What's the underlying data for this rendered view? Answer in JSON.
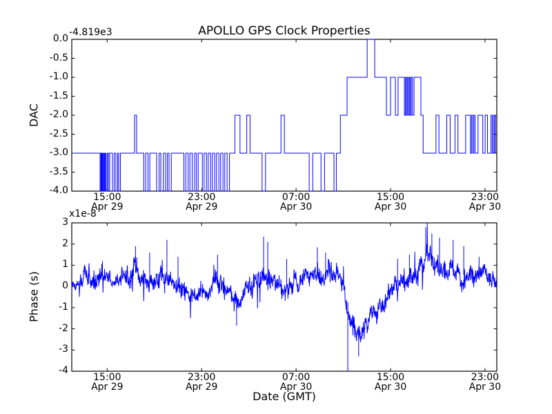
{
  "title": "APOLLO GPS Clock Properties",
  "xlabel": "Date (GMT)",
  "line_color": "#0000ff",
  "axis_color": "#000000",
  "axes": {
    "top": {
      "ylabel": "DAC",
      "offset_text": "-4.819e3",
      "ytick_labels": [
        "0.0",
        "-0.5",
        "-1.0",
        "-1.5",
        "-2.0",
        "-2.5",
        "-3.0",
        "-3.5",
        "-4.0"
      ],
      "ytick_values": [
        0,
        -0.5,
        -1,
        -1.5,
        -2,
        -2.5,
        -3,
        -3.5,
        -4
      ],
      "ylim": [
        -4.0,
        0.0
      ]
    },
    "bottom": {
      "ylabel": "Phase (s)",
      "offset_text": "x1e-8",
      "ytick_labels": [
        "3",
        "2",
        "1",
        "0",
        "-1",
        "-2",
        "-3",
        "-4"
      ],
      "ytick_values": [
        3,
        2,
        1,
        0,
        -1,
        -2,
        -3,
        -4
      ],
      "ylim": [
        -4,
        3
      ]
    }
  },
  "xticks": {
    "values_hours": [
      3,
      11,
      19,
      27,
      35
    ],
    "labels": [
      [
        "15:00",
        "Apr 29"
      ],
      [
        "23:00",
        "Apr 29"
      ],
      [
        "07:00",
        "Apr 30"
      ],
      [
        "15:00",
        "Apr 30"
      ],
      [
        "23:00",
        "Apr 30"
      ]
    ]
  },
  "chart_data": [
    {
      "type": "line",
      "subplot": "top",
      "title": "APOLLO GPS Clock Properties",
      "ylabel": "DAC",
      "y_offset": "-4.819e3",
      "ylim": [
        -4.0,
        0.0
      ],
      "xlim_hours": [
        0,
        36
      ],
      "x_origin": "Apr 29 12:00 GMT",
      "interpolation": "step-post",
      "steps": [
        [
          0,
          -3
        ],
        [
          2.4,
          -4
        ],
        [
          2.47,
          -3
        ],
        [
          2.52,
          -4
        ],
        [
          2.58,
          -3
        ],
        [
          2.64,
          -4
        ],
        [
          2.71,
          -3
        ],
        [
          2.77,
          -4
        ],
        [
          2.84,
          -3
        ],
        [
          2.91,
          -4
        ],
        [
          3.01,
          -3
        ],
        [
          3.11,
          -4
        ],
        [
          3.21,
          -3
        ],
        [
          3.45,
          -4
        ],
        [
          3.6,
          -3
        ],
        [
          3.74,
          -4
        ],
        [
          3.89,
          -3
        ],
        [
          3.98,
          -4
        ],
        [
          4.12,
          -3
        ],
        [
          5.32,
          -2
        ],
        [
          5.49,
          -3
        ],
        [
          6.1,
          -4
        ],
        [
          6.26,
          -3
        ],
        [
          6.46,
          -4
        ],
        [
          6.61,
          -3
        ],
        [
          7.19,
          -4
        ],
        [
          7.4,
          -3
        ],
        [
          7.54,
          -4
        ],
        [
          7.76,
          -3
        ],
        [
          7.95,
          -4
        ],
        [
          8.1,
          -3
        ],
        [
          8.24,
          -4
        ],
        [
          8.43,
          -3
        ],
        [
          9.5,
          -4
        ],
        [
          9.66,
          -3
        ],
        [
          9.86,
          -4
        ],
        [
          10.01,
          -3
        ],
        [
          10.21,
          -4
        ],
        [
          10.41,
          -3
        ],
        [
          10.56,
          -4
        ],
        [
          10.71,
          -3
        ],
        [
          11.06,
          -4
        ],
        [
          11.21,
          -3
        ],
        [
          11.41,
          -4
        ],
        [
          11.56,
          -3
        ],
        [
          11.76,
          -4
        ],
        [
          11.91,
          -3
        ],
        [
          12.11,
          -4
        ],
        [
          12.26,
          -3
        ],
        [
          12.46,
          -4
        ],
        [
          12.61,
          -3
        ],
        [
          12.81,
          -4
        ],
        [
          12.96,
          -3
        ],
        [
          13.16,
          -4
        ],
        [
          13.36,
          -3
        ],
        [
          13.82,
          -2
        ],
        [
          14.25,
          -3
        ],
        [
          14.82,
          -2
        ],
        [
          15.1,
          -3
        ],
        [
          16.12,
          -4
        ],
        [
          16.41,
          -3
        ],
        [
          17.72,
          -2
        ],
        [
          18.01,
          -3
        ],
        [
          20.11,
          -4
        ],
        [
          20.41,
          -3
        ],
        [
          21.11,
          -4
        ],
        [
          21.41,
          -3
        ],
        [
          22.21,
          -4
        ],
        [
          22.41,
          -3
        ],
        [
          22.75,
          -2
        ],
        [
          23.32,
          -1
        ],
        [
          25.02,
          0
        ],
        [
          25.66,
          -1
        ],
        [
          26.65,
          -2
        ],
        [
          27.0,
          -1
        ],
        [
          27.41,
          -2
        ],
        [
          27.64,
          -1
        ],
        [
          28.17,
          -2
        ],
        [
          28.26,
          -1
        ],
        [
          28.34,
          -2
        ],
        [
          28.42,
          -1
        ],
        [
          28.51,
          -2
        ],
        [
          28.59,
          -1
        ],
        [
          28.67,
          -2
        ],
        [
          28.76,
          -1
        ],
        [
          28.86,
          -2
        ],
        [
          28.99,
          -1
        ],
        [
          29.57,
          -2
        ],
        [
          29.76,
          -3
        ],
        [
          30.85,
          -2
        ],
        [
          31.1,
          -3
        ],
        [
          31.76,
          -2
        ],
        [
          32.05,
          -3
        ],
        [
          32.46,
          -2
        ],
        [
          32.71,
          -3
        ],
        [
          33.36,
          -2
        ],
        [
          33.76,
          -3
        ],
        [
          33.86,
          -2
        ],
        [
          33.96,
          -3
        ],
        [
          34.06,
          -2
        ],
        [
          34.16,
          -3
        ],
        [
          34.41,
          -2
        ],
        [
          34.81,
          -3
        ],
        [
          35.01,
          -2
        ],
        [
          35.21,
          -3
        ],
        [
          35.51,
          -2
        ],
        [
          35.61,
          -3
        ],
        [
          35.71,
          -2
        ],
        [
          35.81,
          -3
        ],
        [
          35.89,
          -2
        ]
      ]
    },
    {
      "type": "line",
      "subplot": "bottom",
      "ylabel": "Phase (s)",
      "y_scale": "1e-8",
      "ylim": [
        -4,
        3
      ],
      "xlim_hours": [
        0,
        36
      ],
      "xlabel": "Date (GMT)",
      "noise_seed": 1234567,
      "samples": 1400,
      "envelope": {
        "t": [
          0,
          1,
          2,
          2.6,
          3,
          3.5,
          4,
          4.5,
          5,
          5.4,
          6,
          6.5,
          7,
          7.6,
          8,
          8.5,
          9,
          9.5,
          10,
          10.5,
          11,
          11.5,
          12,
          12.4,
          12.9,
          13.4,
          14,
          14.5,
          15,
          15.5,
          16,
          16.3,
          16.8,
          17.3,
          17.8,
          18.3,
          18.8,
          19.3,
          20,
          20.7,
          21.3,
          22,
          22.5,
          23,
          23.4,
          23.8,
          24.2,
          24.6,
          25,
          25.5,
          26,
          26.5,
          27,
          27.5,
          28,
          28.5,
          29,
          29.5,
          30,
          30.4,
          30.8,
          31.2,
          31.7,
          32.2,
          32.7,
          33.2,
          33.7,
          34.2,
          34.7,
          35.2,
          35.7,
          36
        ],
        "mean": [
          0.05,
          0.25,
          0.4,
          0.55,
          0.5,
          0.4,
          0.3,
          0.35,
          0.55,
          0.65,
          0.4,
          0.2,
          0.25,
          0.45,
          0.3,
          0.1,
          0,
          -0.3,
          -0.5,
          -0.55,
          -0.45,
          -0.35,
          -0.1,
          0.15,
          0,
          -0.35,
          -0.85,
          -0.45,
          0.05,
          0.25,
          0.4,
          0.45,
          0.25,
          0.1,
          0,
          0.1,
          0.2,
          0.35,
          0.45,
          0.5,
          0.55,
          0.6,
          0.5,
          0.2,
          -0.8,
          -1.6,
          -2.1,
          -1.95,
          -1.6,
          -1.45,
          -1.25,
          -0.8,
          -0.15,
          0.2,
          0.35,
          0.3,
          0.5,
          0.9,
          1.45,
          1.3,
          1.05,
          1,
          0.85,
          0.7,
          0.6,
          0.55,
          0.5,
          0.55,
          0.45,
          0.45,
          0.35,
          0.4
        ],
        "amp": [
          0.45,
          0.5,
          0.5,
          0.5,
          0.45,
          0.4,
          0.4,
          0.45,
          0.55,
          0.6,
          0.5,
          0.4,
          0.45,
          0.55,
          0.5,
          0.45,
          0.4,
          0.4,
          0.4,
          0.4,
          0.4,
          0.4,
          0.45,
          0.5,
          0.45,
          0.5,
          0.5,
          0.45,
          0.45,
          0.5,
          0.55,
          0.6,
          0.5,
          0.45,
          0.45,
          0.45,
          0.45,
          0.45,
          0.5,
          0.5,
          0.5,
          0.55,
          0.5,
          0.5,
          0.6,
          0.65,
          0.6,
          0.55,
          0.55,
          0.5,
          0.5,
          0.5,
          0.45,
          0.45,
          0.5,
          0.45,
          0.5,
          0.55,
          0.6,
          0.55,
          0.55,
          0.55,
          0.5,
          0.5,
          0.45,
          0.45,
          0.5,
          0.45,
          0.45,
          0.45,
          0.4,
          0.4
        ]
      },
      "spikes": [
        [
          2.6,
          1.2
        ],
        [
          5.4,
          1.9
        ],
        [
          6.6,
          1.6
        ],
        [
          8.06,
          2.2
        ],
        [
          9.0,
          1.4
        ],
        [
          12.35,
          1.5
        ],
        [
          13.96,
          -1.85
        ],
        [
          16.25,
          2.35
        ],
        [
          16.6,
          2.1
        ],
        [
          18.2,
          1.3
        ],
        [
          20.8,
          1.85
        ],
        [
          21.5,
          1.6
        ],
        [
          23.38,
          -4.0
        ],
        [
          24.3,
          -3.3
        ],
        [
          27.6,
          1.3
        ],
        [
          28.6,
          1.5
        ],
        [
          29.98,
          2.8
        ],
        [
          30.5,
          2.5
        ],
        [
          31.15,
          2.3
        ],
        [
          32.3,
          2.2
        ],
        [
          33.2,
          1.9
        ],
        [
          34.5,
          1.4
        ]
      ]
    }
  ]
}
